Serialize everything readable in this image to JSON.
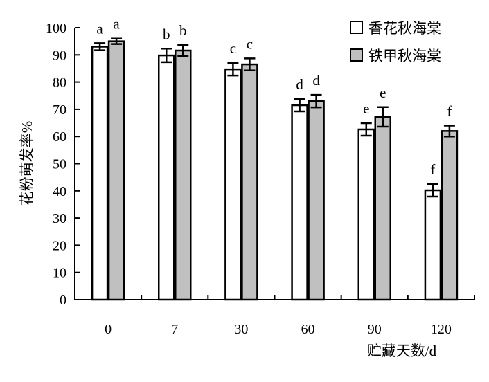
{
  "chart_data": {
    "type": "bar",
    "title": "",
    "xlabel": "贮藏天数/d",
    "ylabel": "花粉萌发率%",
    "ylim": [
      0,
      100
    ],
    "yticks": [
      0,
      10,
      20,
      30,
      40,
      50,
      60,
      70,
      80,
      90,
      100
    ],
    "categories": [
      "0",
      "7",
      "30",
      "60",
      "90",
      "120"
    ],
    "legend_position": "top-right",
    "series": [
      {
        "name": "香花秋海棠",
        "color": "#ffffff",
        "values": [
          93,
          89.8,
          84.7,
          71.5,
          62.6,
          40.2
        ],
        "errors": [
          1.3,
          2.5,
          2.3,
          2.3,
          2.3,
          2.3
        ],
        "letters": [
          "a",
          "b",
          "c",
          "d",
          "e",
          "f"
        ]
      },
      {
        "name": "铁甲秋海棠",
        "color": "#c0c0c0",
        "values": [
          95,
          91.6,
          86.5,
          73,
          67.2,
          62
        ],
        "errors": [
          1.0,
          2.0,
          2.2,
          2.3,
          3.6,
          2.0
        ],
        "letters": [
          "a",
          "b",
          "c",
          "d",
          "e",
          "f"
        ]
      }
    ]
  }
}
